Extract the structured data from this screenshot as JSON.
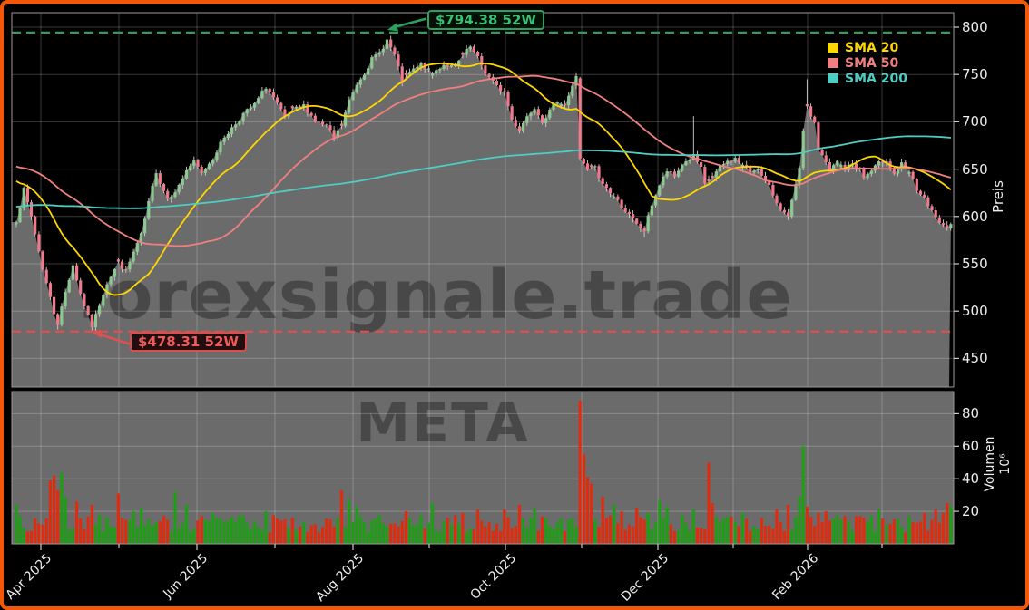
{
  "window": {
    "background": "#000000",
    "border_color": "#f3570a"
  },
  "chart_data": {
    "type": "candlestick",
    "symbol": "META",
    "watermarks": {
      "primary": "forexsignale.trade",
      "secondary": "META"
    },
    "legend": {
      "position": "top-right",
      "items": [
        {
          "label": "SMA 20",
          "color": "#ffd700"
        },
        {
          "label": "SMA 50",
          "color": "#f08080"
        },
        {
          "label": "SMA 200",
          "color": "#4ecdc4"
        }
      ]
    },
    "annotations": {
      "high_52w": {
        "label": "$794.38 52W",
        "value": 794.38,
        "line_color": "#2ca05c",
        "style": "dashed"
      },
      "low_52w": {
        "label": "$478.31 52W",
        "value": 478.31,
        "line_color": "#e14f4f",
        "style": "dashed"
      }
    },
    "price_axis": {
      "title": "Preis",
      "side": "right",
      "ticks": [
        450,
        500,
        550,
        600,
        650,
        700,
        750,
        800
      ]
    },
    "volume_axis": {
      "title": "Volumen",
      "unit": "10⁶",
      "side": "right",
      "ticks": [
        20,
        40,
        60,
        80
      ]
    },
    "x_axis": {
      "tick_labels": [
        "Apr 2025",
        "Jun 2025",
        "Aug 2025",
        "Oct 2025",
        "Dec 2025",
        "Feb 2026"
      ],
      "rotation": 45,
      "monthly_gridlines": 12
    },
    "days": 248,
    "price_anchors": [
      [
        0,
        594
      ],
      [
        2,
        628
      ],
      [
        4,
        600
      ],
      [
        7,
        545
      ],
      [
        10,
        498
      ],
      [
        11,
        487
      ],
      [
        13,
        520
      ],
      [
        15,
        549
      ],
      [
        17,
        518
      ],
      [
        19,
        494
      ],
      [
        20,
        483
      ],
      [
        22,
        507
      ],
      [
        24,
        530
      ],
      [
        27,
        551
      ],
      [
        29,
        542
      ],
      [
        31,
        562
      ],
      [
        33,
        580
      ],
      [
        35,
        614
      ],
      [
        37,
        648
      ],
      [
        38,
        636
      ],
      [
        40,
        619
      ],
      [
        43,
        632
      ],
      [
        45,
        649
      ],
      [
        47,
        658
      ],
      [
        49,
        645
      ],
      [
        52,
        662
      ],
      [
        55,
        684
      ],
      [
        58,
        698
      ],
      [
        60,
        708
      ],
      [
        63,
        718
      ],
      [
        66,
        737
      ],
      [
        68,
        725
      ],
      [
        71,
        704
      ],
      [
        73,
        712
      ],
      [
        76,
        717
      ],
      [
        79,
        701
      ],
      [
        82,
        695
      ],
      [
        84,
        683
      ],
      [
        86,
        696
      ],
      [
        88,
        722
      ],
      [
        90,
        740
      ],
      [
        92,
        752
      ],
      [
        94,
        766
      ],
      [
        96,
        773
      ],
      [
        98,
        786
      ],
      [
        100,
        770
      ],
      [
        102,
        742
      ],
      [
        104,
        752
      ],
      [
        107,
        760
      ],
      [
        110,
        751
      ],
      [
        113,
        761
      ],
      [
        116,
        757
      ],
      [
        118,
        770
      ],
      [
        120,
        779
      ],
      [
        122,
        767
      ],
      [
        124,
        752
      ],
      [
        127,
        737
      ],
      [
        129,
        731
      ],
      [
        131,
        702
      ],
      [
        133,
        692
      ],
      [
        135,
        706
      ],
      [
        137,
        716
      ],
      [
        139,
        701
      ],
      [
        141,
        711
      ],
      [
        143,
        723
      ],
      [
        145,
        718
      ],
      [
        147,
        737
      ],
      [
        148,
        749
      ],
      [
        149,
        661
      ],
      [
        151,
        648
      ],
      [
        153,
        653
      ],
      [
        154,
        639
      ],
      [
        156,
        630
      ],
      [
        158,
        621
      ],
      [
        160,
        611
      ],
      [
        162,
        601
      ],
      [
        164,
        591
      ],
      [
        166,
        585
      ],
      [
        167,
        599
      ],
      [
        168,
        613
      ],
      [
        170,
        633
      ],
      [
        172,
        648
      ],
      [
        174,
        642
      ],
      [
        176,
        655
      ],
      [
        178,
        661
      ],
      [
        179,
        664
      ],
      [
        181,
        650
      ],
      [
        182,
        633
      ],
      [
        184,
        641
      ],
      [
        186,
        652
      ],
      [
        188,
        658
      ],
      [
        190,
        661
      ],
      [
        192,
        654
      ],
      [
        194,
        647
      ],
      [
        196,
        652
      ],
      [
        197,
        642
      ],
      [
        199,
        631
      ],
      [
        201,
        615
      ],
      [
        203,
        603
      ],
      [
        204,
        598
      ],
      [
        205,
        616
      ],
      [
        207,
        649
      ],
      [
        208,
        692
      ],
      [
        209,
        714
      ],
      [
        211,
        699
      ],
      [
        212,
        671
      ],
      [
        214,
        656
      ],
      [
        215,
        648
      ],
      [
        217,
        658
      ],
      [
        219,
        650
      ],
      [
        221,
        656
      ],
      [
        223,
        649
      ],
      [
        224,
        641
      ],
      [
        226,
        648
      ],
      [
        228,
        656
      ],
      [
        230,
        660
      ],
      [
        232,
        645
      ],
      [
        234,
        655
      ],
      [
        236,
        647
      ],
      [
        238,
        628
      ],
      [
        240,
        618
      ],
      [
        241,
        610
      ],
      [
        243,
        600
      ],
      [
        244,
        591
      ],
      [
        246,
        586
      ],
      [
        247,
        592
      ]
    ],
    "history_anchors": [
      [
        -260,
        498
      ],
      [
        -220,
        522
      ],
      [
        -180,
        552
      ],
      [
        -140,
        584
      ],
      [
        -100,
        614
      ],
      [
        -70,
        640
      ],
      [
        -50,
        658
      ],
      [
        -35,
        668
      ],
      [
        -22,
        660
      ],
      [
        -12,
        646
      ],
      [
        -5,
        634
      ],
      [
        -1,
        610
      ]
    ],
    "special_days": {
      "high_day": {
        "day": 98,
        "high": 794.38,
        "close": 787
      },
      "low_day": {
        "day": 20,
        "low": 478.31,
        "close": 483
      },
      "second_low": {
        "day": 11,
        "low": 480.5
      },
      "gap_down": {
        "day": 149,
        "open": 746,
        "close": 661
      },
      "nov_low": {
        "day": 166,
        "low": 578
      },
      "wick_high": {
        "day": 179,
        "high": 706
      },
      "feb_spike": {
        "day": 209,
        "high": 745
      }
    },
    "base_volume": 7,
    "volume_spikes": [
      [
        0,
        24,
        "u"
      ],
      [
        9,
        39,
        "d"
      ],
      [
        10,
        42,
        "d"
      ],
      [
        11,
        33,
        "d"
      ],
      [
        12,
        44,
        "u"
      ],
      [
        13,
        29,
        "u"
      ],
      [
        16,
        26,
        "d"
      ],
      [
        20,
        24,
        "d"
      ],
      [
        22,
        18,
        "u"
      ],
      [
        27,
        31,
        "d"
      ],
      [
        31,
        20,
        "u"
      ],
      [
        33,
        22,
        "u"
      ],
      [
        42,
        32,
        "u"
      ],
      [
        45,
        24,
        "u"
      ],
      [
        52,
        19,
        "u"
      ],
      [
        60,
        17,
        "u"
      ],
      [
        66,
        20,
        "u"
      ],
      [
        73,
        16,
        "d"
      ],
      [
        86,
        33,
        "d"
      ],
      [
        88,
        27,
        "u"
      ],
      [
        90,
        23,
        "u"
      ],
      [
        96,
        18,
        "u"
      ],
      [
        103,
        20,
        "d"
      ],
      [
        110,
        25,
        "u"
      ],
      [
        114,
        16,
        "d"
      ],
      [
        118,
        19,
        "d"
      ],
      [
        122,
        21,
        "d"
      ],
      [
        129,
        21,
        "d"
      ],
      [
        133,
        24,
        "d"
      ],
      [
        137,
        22,
        "u"
      ],
      [
        144,
        16,
        "u"
      ],
      [
        149,
        88,
        "d"
      ],
      [
        150,
        55,
        "d"
      ],
      [
        151,
        41,
        "d"
      ],
      [
        152,
        37,
        "d"
      ],
      [
        155,
        29,
        "d"
      ],
      [
        158,
        24,
        "u"
      ],
      [
        160,
        20,
        "d"
      ],
      [
        164,
        22,
        "d"
      ],
      [
        167,
        19,
        "u"
      ],
      [
        170,
        27,
        "u"
      ],
      [
        172,
        23,
        "u"
      ],
      [
        176,
        18,
        "u"
      ],
      [
        179,
        21,
        "u"
      ],
      [
        183,
        50,
        "d"
      ],
      [
        184,
        25,
        "d"
      ],
      [
        188,
        17,
        "u"
      ],
      [
        192,
        19,
        "u"
      ],
      [
        197,
        16,
        "d"
      ],
      [
        201,
        21,
        "d"
      ],
      [
        204,
        24,
        "d"
      ],
      [
        207,
        29,
        "u"
      ],
      [
        208,
        60,
        "u"
      ],
      [
        209,
        23,
        "d"
      ],
      [
        212,
        19,
        "d"
      ],
      [
        214,
        20,
        "d"
      ],
      [
        218,
        15,
        "u"
      ],
      [
        224,
        16,
        "d"
      ],
      [
        228,
        21,
        "u"
      ],
      [
        232,
        15,
        "d"
      ],
      [
        236,
        17,
        "u"
      ],
      [
        240,
        19,
        "d"
      ],
      [
        243,
        21,
        "d"
      ],
      [
        245,
        19,
        "d"
      ],
      [
        246,
        25,
        "d"
      ],
      [
        247,
        23,
        "u"
      ]
    ],
    "colors": {
      "up_body": "#8cc98f",
      "down_body": "#f0798c",
      "wick": "#cfcfcf",
      "vol_up": "#1e9e14",
      "vol_down": "#e02c0e",
      "sma20": "#ffd700",
      "sma50": "#f08080",
      "sma200": "#4ecdc4",
      "area_fill": "#6b6b6b",
      "volume_bg": "#6b6b6b",
      "grid": "rgba(255,255,255,0.22)",
      "spine": "#9a9a9a",
      "tick": "#cccccc",
      "high_line": "#2ca05c",
      "low_line": "#e14f4f",
      "watermark": "rgba(0,0,0,0.32)"
    }
  }
}
